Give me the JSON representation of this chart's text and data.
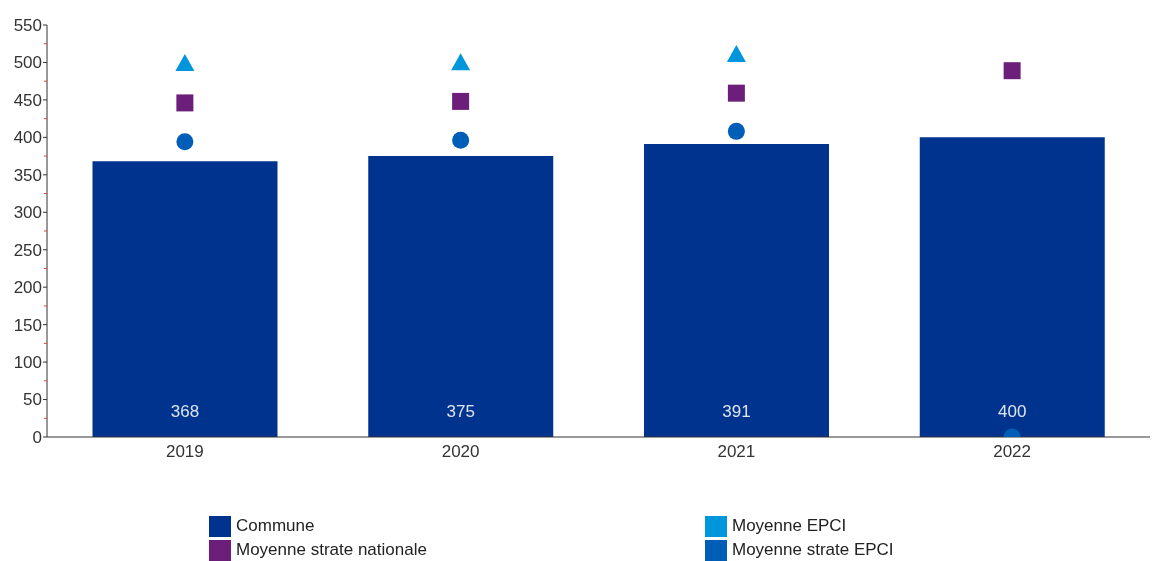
{
  "chart_data": {
    "type": "bar",
    "categories": [
      "2019",
      "2020",
      "2021",
      "2022"
    ],
    "series": [
      {
        "name": "Commune",
        "color": "#00338e",
        "values": [
          368,
          375,
          391,
          400
        ],
        "value_labels": [
          "368",
          "375",
          "391",
          "400"
        ]
      },
      {
        "name": "Moyenne strate nationale",
        "type": "scatter",
        "marker": "square",
        "color": "#6b1f7b",
        "values": [
          446,
          448,
          459,
          489
        ]
      },
      {
        "name": "Moyenne EPCI",
        "type": "scatter",
        "marker": "triangle",
        "color": "#0096dc",
        "values": [
          498,
          499,
          510,
          null
        ]
      },
      {
        "name": "Moyenne strate EPCI",
        "type": "scatter",
        "marker": "circle",
        "color": "#005eb8",
        "values": [
          394,
          396,
          408,
          0
        ]
      }
    ],
    "ylim": [
      0,
      550
    ],
    "yticks": [
      0,
      {
        "value": 25,
        "label": null
      },
      50,
      {
        "value": 75,
        "label": null
      },
      100,
      {
        "value": 125,
        "label": null
      },
      150,
      {
        "value": 175,
        "label": null
      },
      200,
      {
        "value": 225,
        "label": null
      },
      250,
      {
        "value": 275,
        "label": null
      },
      300,
      {
        "value": 325,
        "label": null
      },
      350,
      {
        "value": 375,
        "label": null
      },
      400,
      {
        "value": 425,
        "label": null
      },
      450,
      {
        "value": 475,
        "label": null
      },
      500,
      {
        "value": 525,
        "label": null
      },
      550
    ],
    "legend": "bottom"
  }
}
